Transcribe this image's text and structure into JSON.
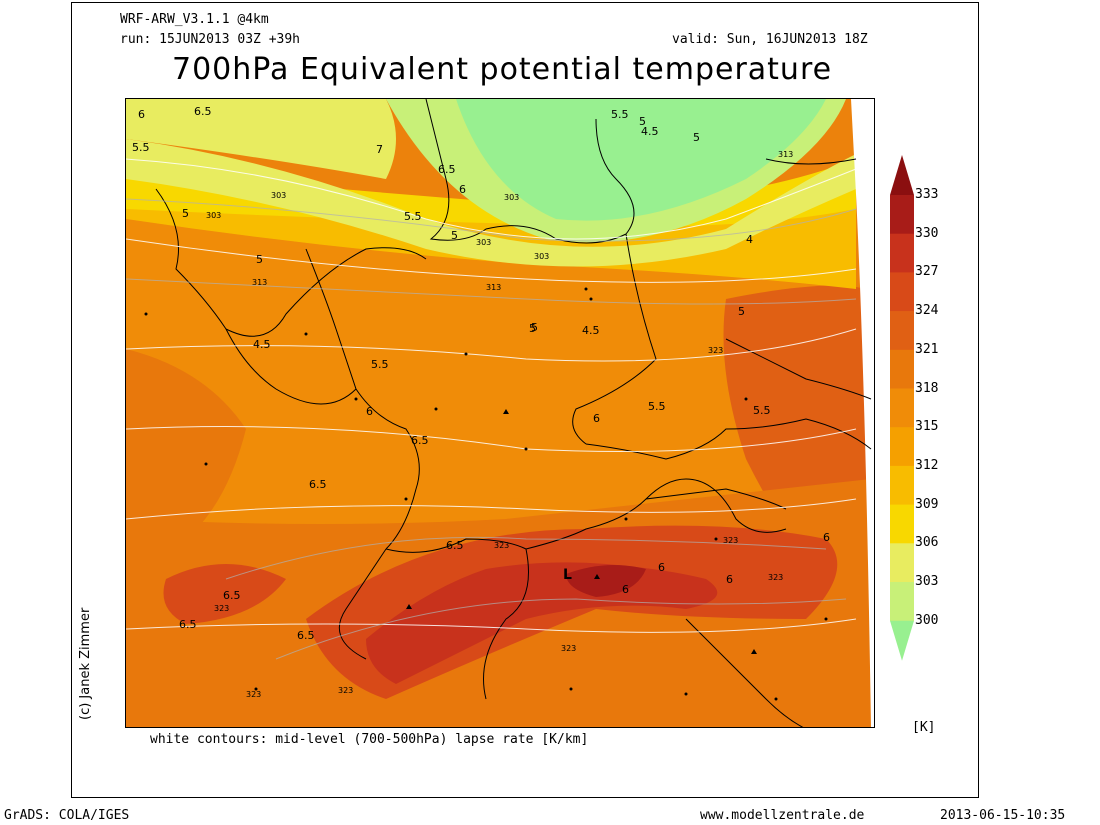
{
  "header": {
    "model": "WRF-ARW_V3.1.1 @4km",
    "run": "run: 15JUN2013 03Z +39h",
    "valid": "valid: Sun, 16JUN2013 18Z",
    "title": "700hPa Equivalent potential temperature"
  },
  "map": {
    "lapse_labels": [
      "6",
      "6.5",
      "5.5",
      "7",
      "6.5",
      "6",
      "5",
      "5.5",
      "5",
      "5",
      "5.5",
      "5",
      "4.5",
      "5",
      "4",
      "4.5",
      "5",
      "5",
      "5.5",
      "6",
      "6.5",
      "6.5",
      "5",
      "4.5",
      "6",
      "5.5",
      "5.5",
      "6",
      "6.5",
      "6",
      "6",
      "6",
      "6.5",
      "6.5",
      "6.5"
    ],
    "theta_labels": [
      "303",
      "303",
      "303",
      "303",
      "303",
      "313",
      "313",
      "313",
      "323",
      "323",
      "323",
      "323",
      "323",
      "323",
      "323",
      "323"
    ],
    "low_marker": "L",
    "caption": "white contours: mid-level (700-500hPa) lapse rate [K/km]"
  },
  "colorbar": {
    "levels": [
      "333",
      "330",
      "327",
      "324",
      "321",
      "318",
      "315",
      "312",
      "309",
      "306",
      "303",
      "300"
    ],
    "colors": [
      "#8b0f10",
      "#a81c18",
      "#c8321c",
      "#d84a18",
      "#e06014",
      "#e8780c",
      "#f08c08",
      "#f5a000",
      "#f8bc00",
      "#f8d800",
      "#e8ec60",
      "#c8f078",
      "#98f090"
    ],
    "unit": "[K]"
  },
  "credit": "(c) Janek Zimmer",
  "footer": {
    "left": "GrADS: COLA/IGES",
    "center": "www.modellzentrale.de",
    "right": "2013-06-15-10:35"
  }
}
